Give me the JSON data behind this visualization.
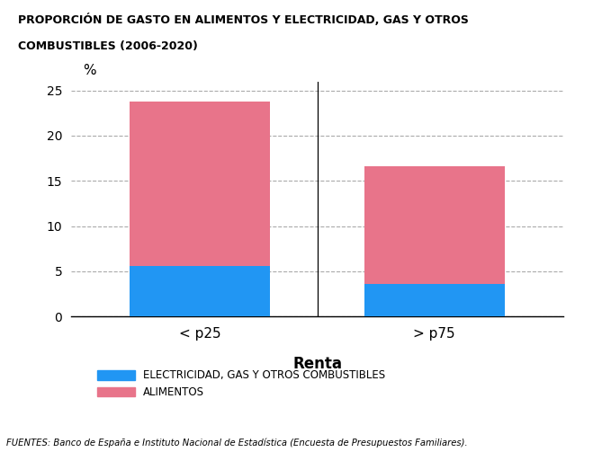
{
  "title_line1": "PROPORCIÓN DE GASTO EN ALIMENTOS Y ELECTRICIDAD, GAS Y OTROS",
  "title_line2": "COMBUSTIBLES (2006-2020)",
  "categories": [
    "< p25",
    "> p75"
  ],
  "electricity": [
    5.6,
    3.6
  ],
  "alimentos": [
    18.2,
    13.0
  ],
  "color_electricity": "#2196F3",
  "color_alimentos": "#E8748A",
  "ylabel": "%",
  "xlabel": "Renta",
  "ylim": [
    0,
    26
  ],
  "yticks": [
    0,
    5,
    10,
    15,
    20,
    25
  ],
  "legend_electricity": "ELECTRICIDAD, GAS Y OTROS COMBUSTIBLES",
  "legend_alimentos": "ALIMENTOS",
  "footer": "FUENTES: Banco de España e Instituto Nacional de Estadística (Encuesta de Presupuestos Familiares).",
  "background_color": "#FFFFFF",
  "bar_width": 0.6
}
